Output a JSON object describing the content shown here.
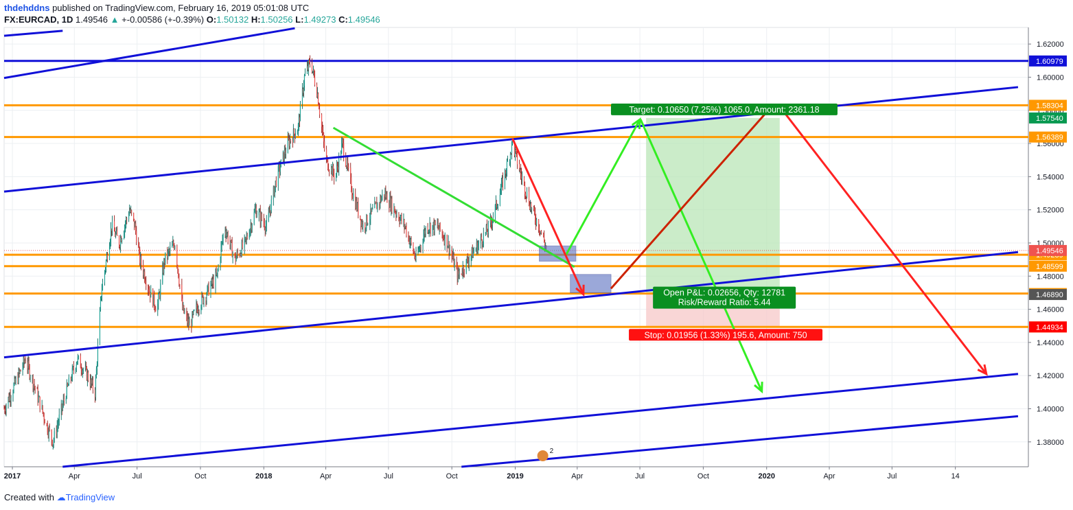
{
  "header": {
    "author": "thdehddns",
    "published": "published on TradingView.com, February 16, 2019 05:01:08 UTC",
    "symbol": "FX:EURCAD, 1D",
    "last": "1.49546",
    "change": "+-0.00586 (+-0.39%)",
    "open_label": "O:",
    "open": "1.50132",
    "high_label": "H:",
    "high": "1.50256",
    "low_label": "L:",
    "low": "1.49273",
    "close_label": "C:",
    "close": "1.49546"
  },
  "footer": {
    "created_with": "Created with",
    "brand": "TradingView"
  },
  "chart_data": {
    "type": "candlestick",
    "symbol": "FX:EURCAD",
    "interval": "1D",
    "ylim": [
      1.365,
      1.63
    ],
    "xlim": [
      "2016-12-20",
      "2021-01-15"
    ],
    "grid": true,
    "x_ticks": [
      {
        "date": "2017-01-01",
        "label": "2017",
        "bold": true
      },
      {
        "date": "2017-04-01",
        "label": "Apr"
      },
      {
        "date": "2017-07-01",
        "label": "Jul"
      },
      {
        "date": "2017-10-01",
        "label": "Oct"
      },
      {
        "date": "2018-01-01",
        "label": "2018",
        "bold": true
      },
      {
        "date": "2018-04-01",
        "label": "Apr"
      },
      {
        "date": "2018-07-01",
        "label": "Jul"
      },
      {
        "date": "2018-10-01",
        "label": "Oct"
      },
      {
        "date": "2019-01-01",
        "label": "2019",
        "bold": true
      },
      {
        "date": "2019-04-01",
        "label": "Apr"
      },
      {
        "date": "2019-07-01",
        "label": "Jul"
      },
      {
        "date": "2019-10-01",
        "label": "Oct"
      },
      {
        "date": "2020-01-01",
        "label": "2020",
        "bold": true
      },
      {
        "date": "2020-04-01",
        "label": "Apr"
      },
      {
        "date": "2020-07-01",
        "label": "Jul"
      },
      {
        "date": "2020-10-01",
        "label": "14"
      }
    ],
    "y_ticks": [
      "1.62000",
      "1.60000",
      "1.58000",
      "1.56000",
      "1.54000",
      "1.52000",
      "1.50000",
      "1.48000",
      "1.46000",
      "1.44000",
      "1.42000",
      "1.40000",
      "1.38000"
    ],
    "price_path": [
      [
        "2016-12-20",
        1.4
      ],
      [
        "2017-01-10",
        1.42
      ],
      [
        "2017-01-20",
        1.43
      ],
      [
        "2017-02-05",
        1.41
      ],
      [
        "2017-02-20",
        1.39
      ],
      [
        "2017-03-01",
        1.38
      ],
      [
        "2017-03-20",
        1.41
      ],
      [
        "2017-04-05",
        1.43
      ],
      [
        "2017-04-20",
        1.42
      ],
      [
        "2017-05-01",
        1.41
      ],
      [
        "2017-05-10",
        1.47
      ],
      [
        "2017-05-25",
        1.51
      ],
      [
        "2017-06-05",
        1.5
      ],
      [
        "2017-06-20",
        1.52
      ],
      [
        "2017-06-28",
        1.51
      ],
      [
        "2017-07-05",
        1.49
      ],
      [
        "2017-07-20",
        1.47
      ],
      [
        "2017-07-30",
        1.46
      ],
      [
        "2017-08-10",
        1.49
      ],
      [
        "2017-08-25",
        1.5
      ],
      [
        "2017-09-05",
        1.46
      ],
      [
        "2017-09-15",
        1.45
      ],
      [
        "2017-09-25",
        1.46
      ],
      [
        "2017-10-10",
        1.47
      ],
      [
        "2017-10-25",
        1.48
      ],
      [
        "2017-11-05",
        1.51
      ],
      [
        "2017-11-20",
        1.49
      ],
      [
        "2017-12-05",
        1.5
      ],
      [
        "2017-12-20",
        1.52
      ],
      [
        "2018-01-05",
        1.51
      ],
      [
        "2018-01-20",
        1.54
      ],
      [
        "2018-02-05",
        1.56
      ],
      [
        "2018-02-20",
        1.57
      ],
      [
        "2018-03-01",
        1.6
      ],
      [
        "2018-03-10",
        1.61
      ],
      [
        "2018-03-20",
        1.59
      ],
      [
        "2018-04-01",
        1.55
      ],
      [
        "2018-04-15",
        1.54
      ],
      [
        "2018-04-25",
        1.56
      ],
      [
        "2018-05-10",
        1.53
      ],
      [
        "2018-05-25",
        1.51
      ],
      [
        "2018-06-10",
        1.52
      ],
      [
        "2018-06-25",
        1.53
      ],
      [
        "2018-07-10",
        1.52
      ],
      [
        "2018-07-25",
        1.51
      ],
      [
        "2018-08-10",
        1.49
      ],
      [
        "2018-08-25",
        1.51
      ],
      [
        "2018-09-10",
        1.51
      ],
      [
        "2018-09-25",
        1.5
      ],
      [
        "2018-10-10",
        1.48
      ],
      [
        "2018-10-25",
        1.49
      ],
      [
        "2018-11-10",
        1.5
      ],
      [
        "2018-11-25",
        1.51
      ],
      [
        "2018-12-10",
        1.53
      ],
      [
        "2018-12-28",
        1.56
      ],
      [
        "2019-01-10",
        1.54
      ],
      [
        "2019-01-25",
        1.52
      ],
      [
        "2019-02-05",
        1.51
      ],
      [
        "2019-02-16",
        1.49546
      ]
    ],
    "horizontal_levels": [
      {
        "price": 1.60979,
        "label": "1.60979",
        "color": "#1010d8"
      },
      {
        "price": 1.58304,
        "label": "1.58304",
        "color": "#ff9800"
      },
      {
        "price": 1.56389,
        "label": "1.56389",
        "color": "#ff9800"
      },
      {
        "price": 1.49289,
        "label": "1.49289",
        "color": "#ff9800"
      },
      {
        "price": 1.48599,
        "label": "1.48599",
        "color": "#ff9800"
      },
      {
        "price": 1.46949,
        "label": "1.46949",
        "color": "#ff9800"
      },
      {
        "price": 1.44934,
        "label": "1.44934",
        "color": "#ff9800"
      }
    ],
    "price_labels": [
      {
        "price": 1.49546,
        "label": "1.49546",
        "color": "#ef5350"
      },
      {
        "price": 1.5754,
        "label": "1.57540",
        "color": "#089950"
      },
      {
        "price": 1.4689,
        "label": "1.46890",
        "color": "#555555"
      },
      {
        "price": 1.44934,
        "label": "1.44934",
        "color": "#ff0000"
      }
    ],
    "trendlines": [
      {
        "color": "#1010d8",
        "from": [
          "2016-12-20",
          1.625
        ],
        "to": [
          "2017-03-15",
          1.628
        ]
      },
      {
        "color": "#1010d8",
        "from": [
          "2016-12-20",
          1.5995
        ],
        "to": [
          "2018-02-15",
          1.6295
        ]
      },
      {
        "color": "#1010d8",
        "from": [
          "2016-12-20",
          1.531
        ],
        "to": [
          "2020-12-31",
          1.594
        ]
      },
      {
        "color": "#1010d8",
        "from": [
          "2016-12-20",
          1.431
        ],
        "to": [
          "2020-12-31",
          1.4945
        ]
      },
      {
        "color": "#1010d8",
        "from": [
          "2017-03-15",
          1.365
        ],
        "to": [
          "2020-12-31",
          1.421
        ]
      },
      {
        "color": "#1010d8",
        "from": [
          "2018-10-15",
          1.365
        ],
        "to": [
          "2020-12-31",
          1.3955
        ]
      }
    ],
    "annotations": {
      "target": "Target: 0.10650 (7.25%) 1065.0, Amount: 2361.18",
      "open_pnl": "Open P&L: 0.02656, Qty: 12781",
      "risk_reward": "Risk/Reward Ratio: 5.44",
      "stop": "Stop: 0.01956 (1.33%) 195.6, Amount: 750"
    }
  }
}
